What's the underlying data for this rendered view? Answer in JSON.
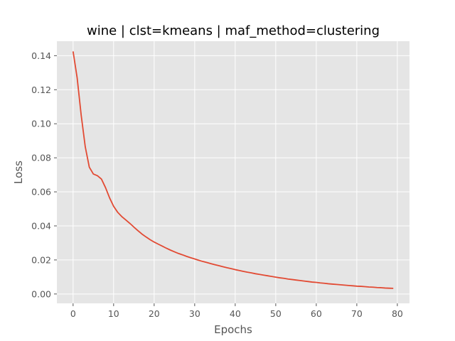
{
  "chart_data": {
    "type": "line",
    "title": "wine | clst=kmeans | maf_method=clustering",
    "xlabel": "Epochs",
    "ylabel": "Loss",
    "xlim": [
      -4,
      83
    ],
    "ylim": [
      -0.0055,
      0.1485
    ],
    "xticks": [
      0,
      10,
      20,
      30,
      40,
      50,
      60,
      70,
      80
    ],
    "yticks": [
      0.0,
      0.02,
      0.04,
      0.06,
      0.08,
      0.1,
      0.12,
      0.14
    ],
    "xtick_labels": [
      "0",
      "10",
      "20",
      "30",
      "40",
      "50",
      "60",
      "70",
      "80"
    ],
    "ytick_labels": [
      "0.00",
      "0.02",
      "0.04",
      "0.06",
      "0.08",
      "0.10",
      "0.12",
      "0.14"
    ],
    "grid": true,
    "line_color": "#E24A33",
    "background_color": "#E5E5E5",
    "grid_color": "#FFFFFF",
    "series": [
      {
        "x": [
          0,
          1,
          2,
          3,
          4,
          5,
          6,
          7,
          8,
          9,
          10,
          11,
          12,
          13,
          14,
          15,
          16,
          17,
          18,
          19,
          20,
          21,
          22,
          23,
          24,
          25,
          26,
          27,
          28,
          29,
          30,
          31,
          32,
          33,
          34,
          35,
          36,
          37,
          38,
          39,
          40,
          41,
          42,
          43,
          44,
          45,
          46,
          47,
          48,
          49,
          50,
          51,
          52,
          53,
          54,
          55,
          56,
          57,
          58,
          59,
          60,
          61,
          62,
          63,
          64,
          65,
          66,
          67,
          68,
          69,
          70,
          71,
          72,
          73,
          74,
          75,
          76,
          77,
          78,
          79
        ],
        "values": [
          0.1425,
          0.127,
          0.105,
          0.0865,
          0.0745,
          0.0705,
          0.0695,
          0.0675,
          0.0625,
          0.0565,
          0.0515,
          0.048,
          0.0455,
          0.0435,
          0.0415,
          0.0393,
          0.0372,
          0.0352,
          0.0335,
          0.0319,
          0.0305,
          0.0293,
          0.0281,
          0.0269,
          0.0258,
          0.0248,
          0.0238,
          0.023,
          0.0221,
          0.0213,
          0.0206,
          0.0198,
          0.0191,
          0.0185,
          0.0178,
          0.0172,
          0.0166,
          0.016,
          0.0154,
          0.0149,
          0.0143,
          0.0138,
          0.0133,
          0.0128,
          0.0124,
          0.0119,
          0.0115,
          0.0111,
          0.0107,
          0.0103,
          0.0099,
          0.0095,
          0.0092,
          0.0088,
          0.0085,
          0.0082,
          0.0079,
          0.0076,
          0.0073,
          0.007,
          0.0068,
          0.0065,
          0.0063,
          0.006,
          0.0058,
          0.0056,
          0.0054,
          0.0052,
          0.005,
          0.0048,
          0.0046,
          0.0045,
          0.0043,
          0.0041,
          0.004,
          0.0038,
          0.0037,
          0.0035,
          0.0034,
          0.0033
        ]
      }
    ]
  }
}
